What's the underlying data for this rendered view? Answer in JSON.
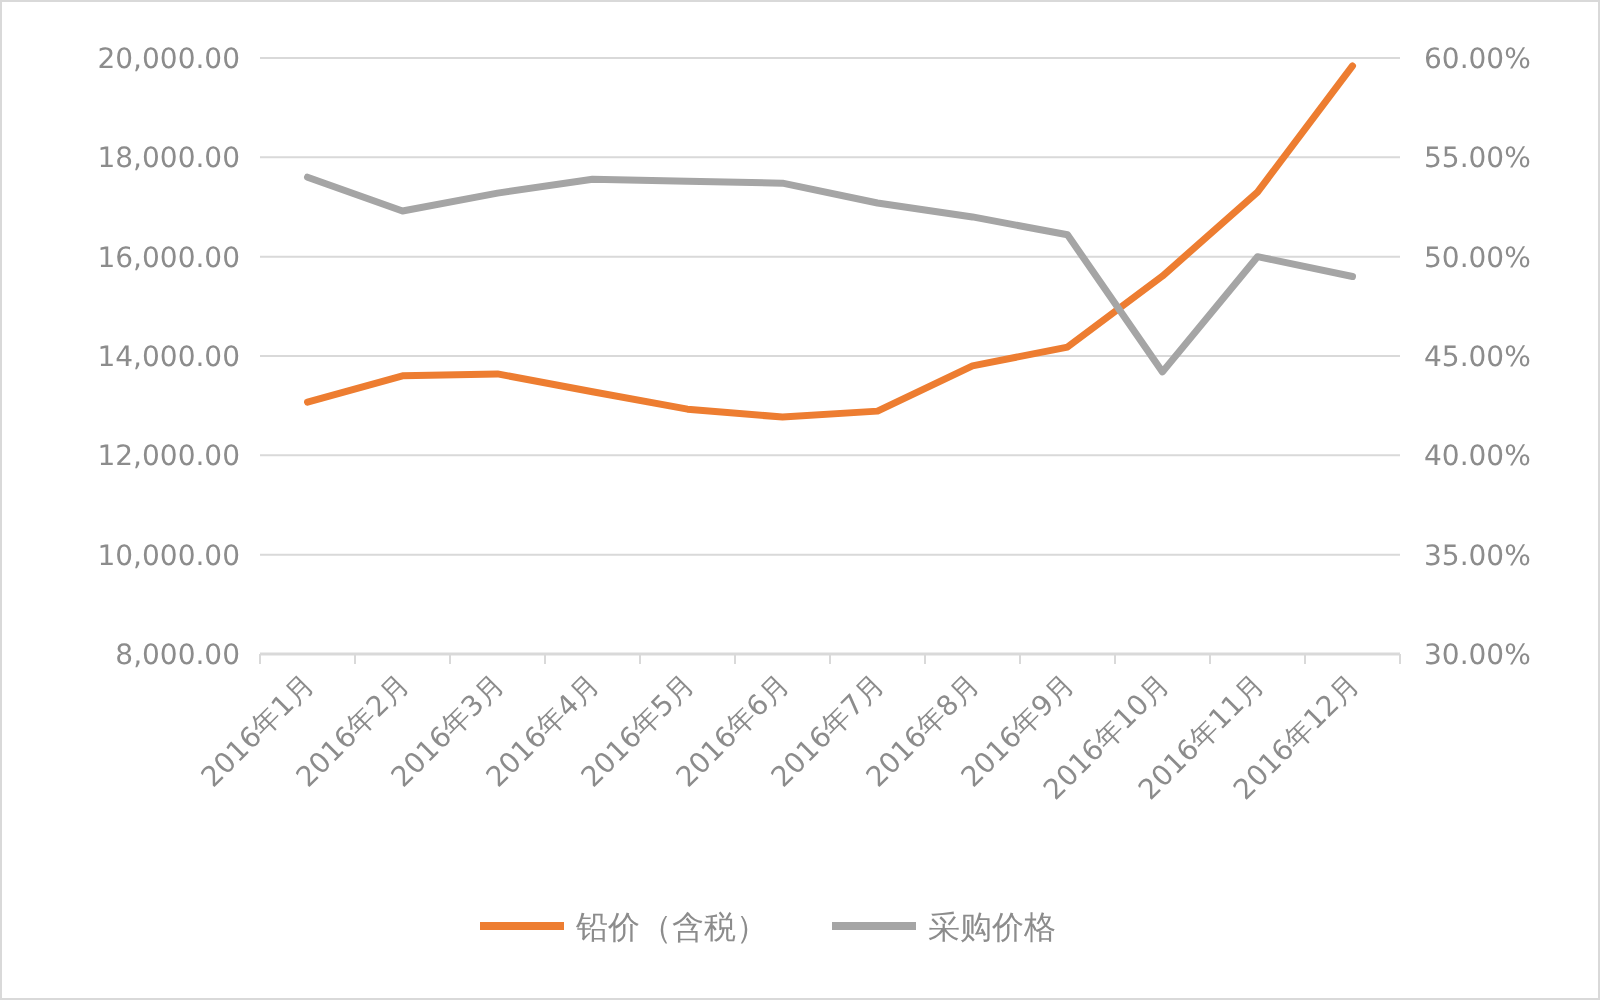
{
  "chart_data": {
    "type": "line",
    "categories": [
      "2016年1月",
      "2016年2月",
      "2016年3月",
      "2016年4月",
      "2016年5月",
      "2016年6月",
      "2016年7月",
      "2016年8月",
      "2016年9月",
      "2016年10月",
      "2016年11月",
      "2016年12月"
    ],
    "series": [
      {
        "name": "铅价（含税）",
        "color": "#ed7d31",
        "values": [
          13070,
          13600,
          13640,
          13280,
          12930,
          12770,
          12890,
          13800,
          14180,
          15610,
          17300,
          19840
        ]
      },
      {
        "name": "采购价格",
        "color": "#a5a5a5",
        "axis": "y2",
        "values": [
          54.0,
          52.3,
          53.2,
          53.9,
          53.8,
          53.7,
          52.7,
          52.0,
          51.1,
          44.2,
          50.0,
          49.0
        ]
      }
    ],
    "ylim": [
      8000,
      20000
    ],
    "yticks": [
      {
        "value": 8000,
        "label": "8,000.00"
      },
      {
        "value": 10000,
        "label": "10,000.00"
      },
      {
        "value": 12000,
        "label": "12,000.00"
      },
      {
        "value": 14000,
        "label": "14,000.00"
      },
      {
        "value": 16000,
        "label": "16,000.00"
      },
      {
        "value": 18000,
        "label": "18,000.00"
      },
      {
        "value": 20000,
        "label": "20,000.00"
      }
    ],
    "y2lim": [
      30,
      60
    ],
    "y2ticks": [
      {
        "value": 30,
        "label": "30.00%"
      },
      {
        "value": 35,
        "label": "35.00%"
      },
      {
        "value": 40,
        "label": "40.00%"
      },
      {
        "value": 45,
        "label": "45.00%"
      },
      {
        "value": 50,
        "label": "50.00%"
      },
      {
        "value": 55,
        "label": "55.00%"
      },
      {
        "value": 60,
        "label": "60.00%"
      }
    ],
    "grid": "y",
    "legend": "bottom",
    "marker": "none",
    "line_style": "solid"
  }
}
